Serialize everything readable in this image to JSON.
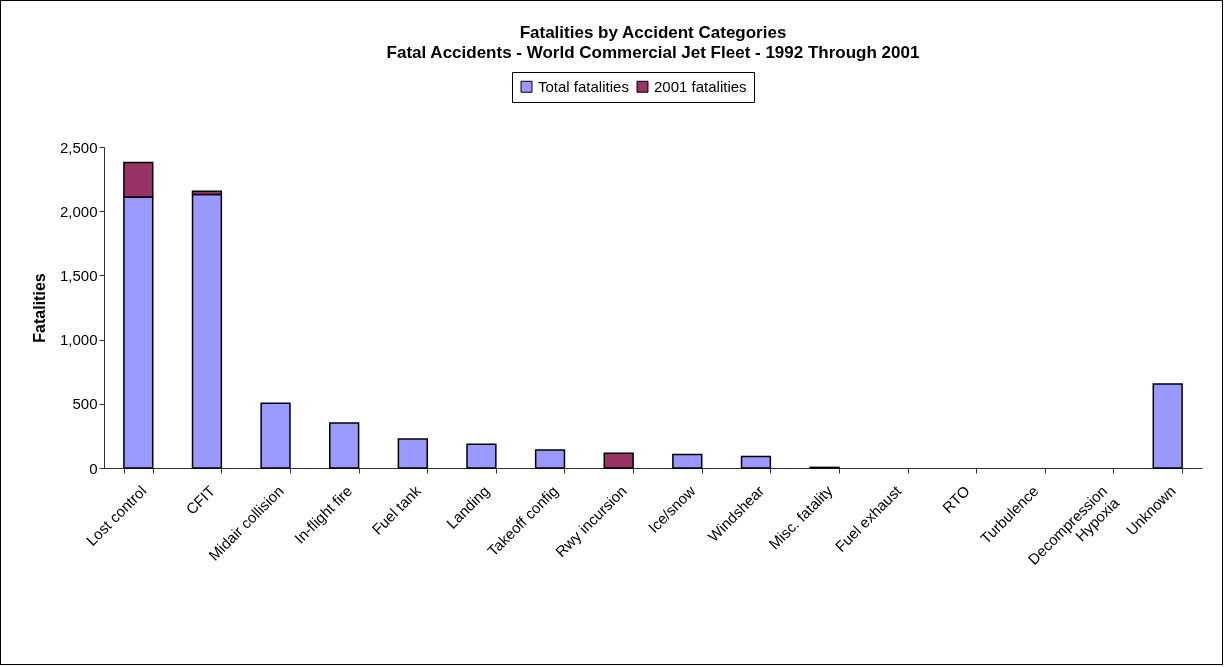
{
  "chart_data": {
    "type": "bar",
    "title": "Fatalities by Accident Categories",
    "subtitle": "Fatal Accidents - World Commercial Jet Fleet - 1992 Through 2001",
    "ylabel": "Fatalities",
    "categories": [
      "Lost control",
      "CFIT",
      "Midair collision",
      "In-flight fire",
      "Fuel tank",
      "Landing",
      "Takeoff config",
      "Rwy incursion",
      "Ice/snow",
      "Windshear",
      "Misc. fatality",
      "Fuel exhaust",
      "RTO",
      "Turbulence",
      "Decompression\nHypoxia",
      "Unknown"
    ],
    "stacked": true,
    "series": [
      {
        "name": "Total fatalities",
        "color": "#9999ff",
        "values": [
          2110,
          2130,
          505,
          350,
          225,
          185,
          140,
          0,
          105,
          90,
          5,
          0,
          0,
          0,
          0,
          655
        ]
      },
      {
        "name": "2001 fatalities",
        "color": "#993366",
        "values": [
          270,
          25,
          0,
          0,
          0,
          0,
          0,
          115,
          0,
          0,
          0,
          0,
          0,
          0,
          0,
          0
        ]
      }
    ],
    "ylim": [
      0,
      2500
    ],
    "yticks": [
      {
        "value": 0,
        "label": "0"
      },
      {
        "value": 500,
        "label": "500"
      },
      {
        "value": 1000,
        "label": "1,000"
      },
      {
        "value": 1500,
        "label": "1,500"
      },
      {
        "value": 2000,
        "label": "2,000"
      },
      {
        "value": 2500,
        "label": "2,500"
      }
    ],
    "grid": false,
    "legend": "top"
  }
}
